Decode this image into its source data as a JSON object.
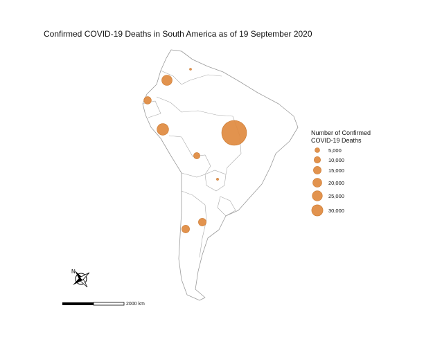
{
  "title": "Confirmed COVID-19 Deaths in South America as of 19 September 2020",
  "legend": {
    "title_line1": "Number of Confirmed",
    "title_line2": "COVID-19 Deaths",
    "entries": [
      {
        "label": "5,000",
        "value": 5000
      },
      {
        "label": "10,000",
        "value": 10000
      },
      {
        "label": "15,000",
        "value": 15000
      },
      {
        "label": "20,000",
        "value": 20000
      },
      {
        "label": "25,000",
        "value": 25000
      },
      {
        "label": "30,000",
        "value": 30000
      }
    ]
  },
  "scale_bar": {
    "label": "2000 km"
  },
  "north_arrow": {
    "label": "N"
  },
  "colors": {
    "bubble": "#e08a3f",
    "border": "#9a9a9a"
  },
  "icons": {
    "north_arrow": "compass-rose-icon"
  },
  "deaths": [
    {
      "country": "Brazil",
      "value": 136000
    },
    {
      "country": "Peru",
      "value": 31000
    },
    {
      "country": "Colombia",
      "value": 23000
    },
    {
      "country": "Argentina",
      "value": 12000
    },
    {
      "country": "Chile",
      "value": 12000
    },
    {
      "country": "Ecuador",
      "value": 11000
    },
    {
      "country": "Bolivia",
      "value": 7500
    },
    {
      "country": "Venezuela",
      "value": 540
    },
    {
      "country": "Paraguay",
      "value": 600
    }
  ]
}
